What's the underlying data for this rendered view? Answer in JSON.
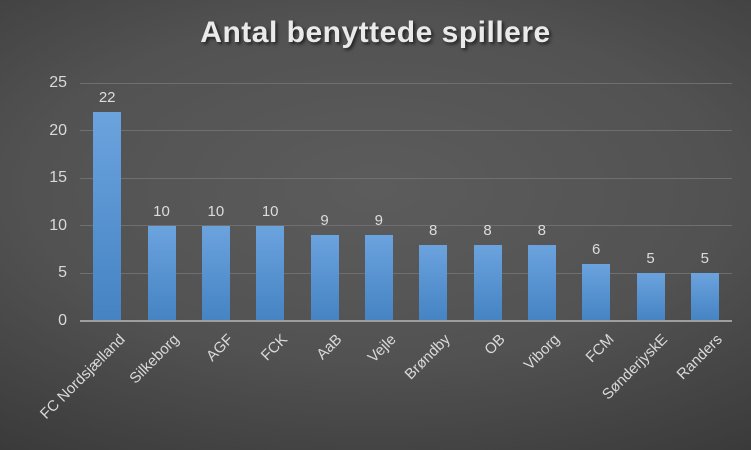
{
  "chart_data": {
    "type": "bar",
    "title": "Antal benyttede spillere",
    "categories": [
      "FC Nordsjælland",
      "Silkeborg",
      "AGF",
      "FCK",
      "AaB",
      "Vejle",
      "Brøndby",
      "OB",
      "Viborg",
      "FCM",
      "SønderjyskE",
      "Randers"
    ],
    "values": [
      22,
      10,
      10,
      10,
      9,
      9,
      8,
      8,
      8,
      6,
      5,
      5
    ],
    "xlabel": "",
    "ylabel": "",
    "ylim": [
      0,
      25
    ],
    "yticks": [
      0,
      5,
      10,
      15,
      20,
      25
    ],
    "grid": true,
    "legend": false,
    "data_labels": true,
    "colors": {
      "bar_top": "#6ba3de",
      "bar_bottom": "#4583c3",
      "background_center": "#5c5c5c",
      "background_edge": "#212121",
      "gridline": "#6f6f6f",
      "axis_line": "#9e9e9e",
      "tick_label": "#d9d9d9",
      "data_label": "#dcdcdc",
      "title": "#eaeaea"
    }
  }
}
